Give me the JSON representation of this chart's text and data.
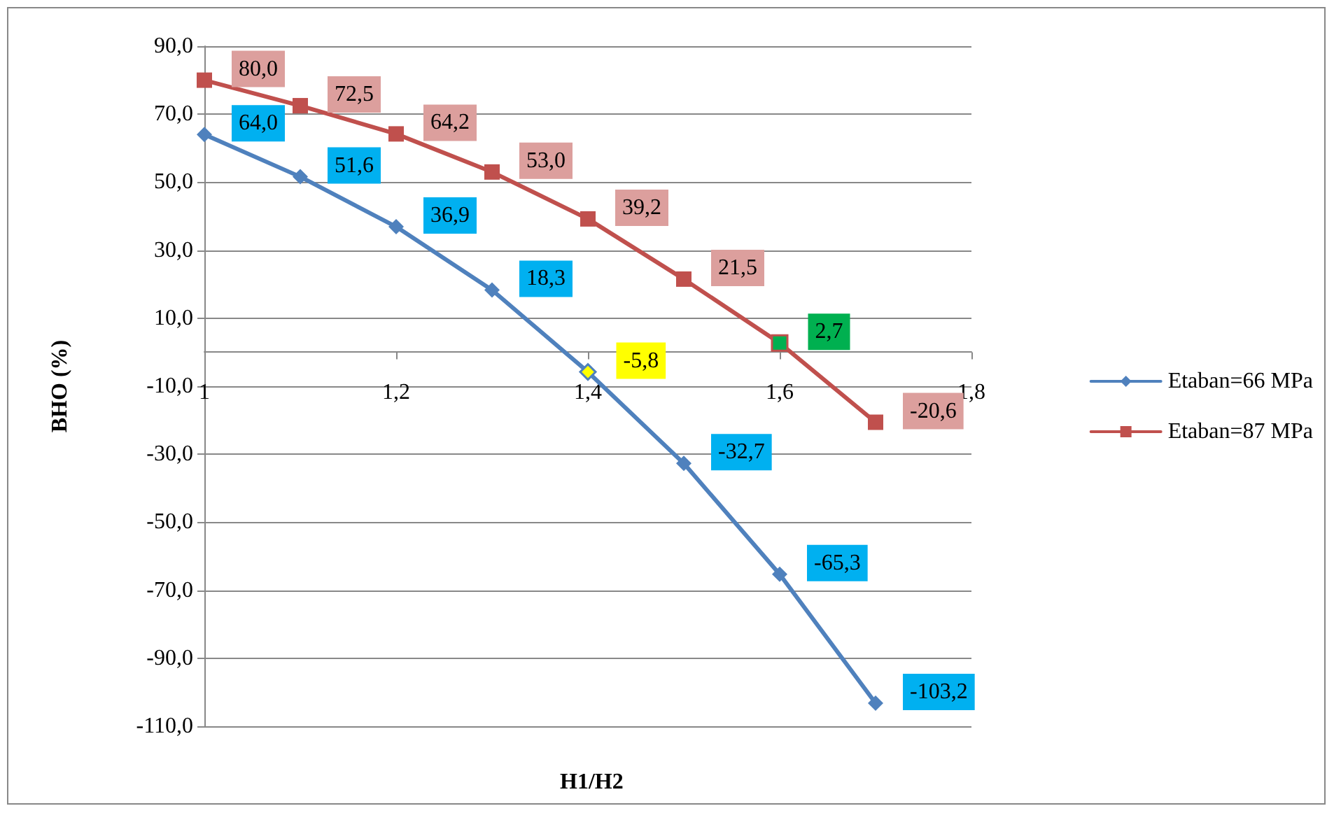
{
  "chart_data": {
    "type": "line",
    "xlabel": "H1/H2",
    "ylabel": "BHO (%)",
    "x": [
      1,
      1.1,
      1.2,
      1.3,
      1.4,
      1.5,
      1.6,
      1.7
    ],
    "series": [
      {
        "name": "Etaban=66 MPa",
        "color": "#4f81bd",
        "values": [
          64.0,
          51.6,
          36.9,
          18.3,
          -5.8,
          -32.7,
          -65.3,
          -103.2
        ],
        "colors": [
          "#4f81bd",
          "#4f81bd",
          "#4f81bd",
          "#4f81bd",
          "#ffff00",
          "#4f81bd",
          "#4f81bd",
          "#4f81bd"
        ],
        "marker": "diamond",
        "value_labels": [
          "64,0",
          "51,6",
          "36,9",
          "18,3",
          "-5,8",
          "-32,7",
          "-65,3",
          "-103,2"
        ]
      },
      {
        "name": "Etaban=87 MPa",
        "color": "#c0504d",
        "values": [
          80.0,
          72.5,
          64.2,
          53.0,
          39.2,
          21.5,
          2.7,
          -20.6
        ],
        "colors": [
          "#c0504d",
          "#c0504d",
          "#c0504d",
          "#c0504d",
          "#c0504d",
          "#c0504d",
          "#00b050",
          "#c0504d"
        ],
        "marker": "square",
        "value_labels": [
          "80,0",
          "72,5",
          "64,2",
          "53,0",
          "39,2",
          "21,5",
          "2,7",
          "-20,6"
        ]
      }
    ],
    "xlim": [
      1,
      1.8
    ],
    "xticks": [
      1,
      {
        "value": 1.2,
        "label": "1,2"
      },
      {
        "value": 1.4,
        "label": "1,4"
      },
      {
        "value": 1.6,
        "label": "1,6"
      },
      {
        "value": 1.8,
        "label": "1,8"
      }
    ],
    "ylim": [
      -110,
      90
    ],
    "yticks": [
      {
        "value": -110,
        "label": "-110,0"
      },
      {
        "value": -90,
        "label": "-90,0"
      },
      {
        "value": -70,
        "label": "-70,0"
      },
      {
        "value": -50,
        "label": "-50,0"
      },
      {
        "value": -30,
        "label": "-30,0"
      },
      {
        "value": -10,
        "label": "-10,0"
      },
      {
        "value": 10,
        "label": "10,0"
      },
      {
        "value": 30,
        "label": "30,0"
      },
      {
        "value": 50,
        "label": "50,0"
      },
      {
        "value": 70,
        "label": "70,0"
      },
      {
        "value": 90,
        "label": "90,0"
      }
    ],
    "grid": "y",
    "legend": "right",
    "line_style": "solid"
  }
}
